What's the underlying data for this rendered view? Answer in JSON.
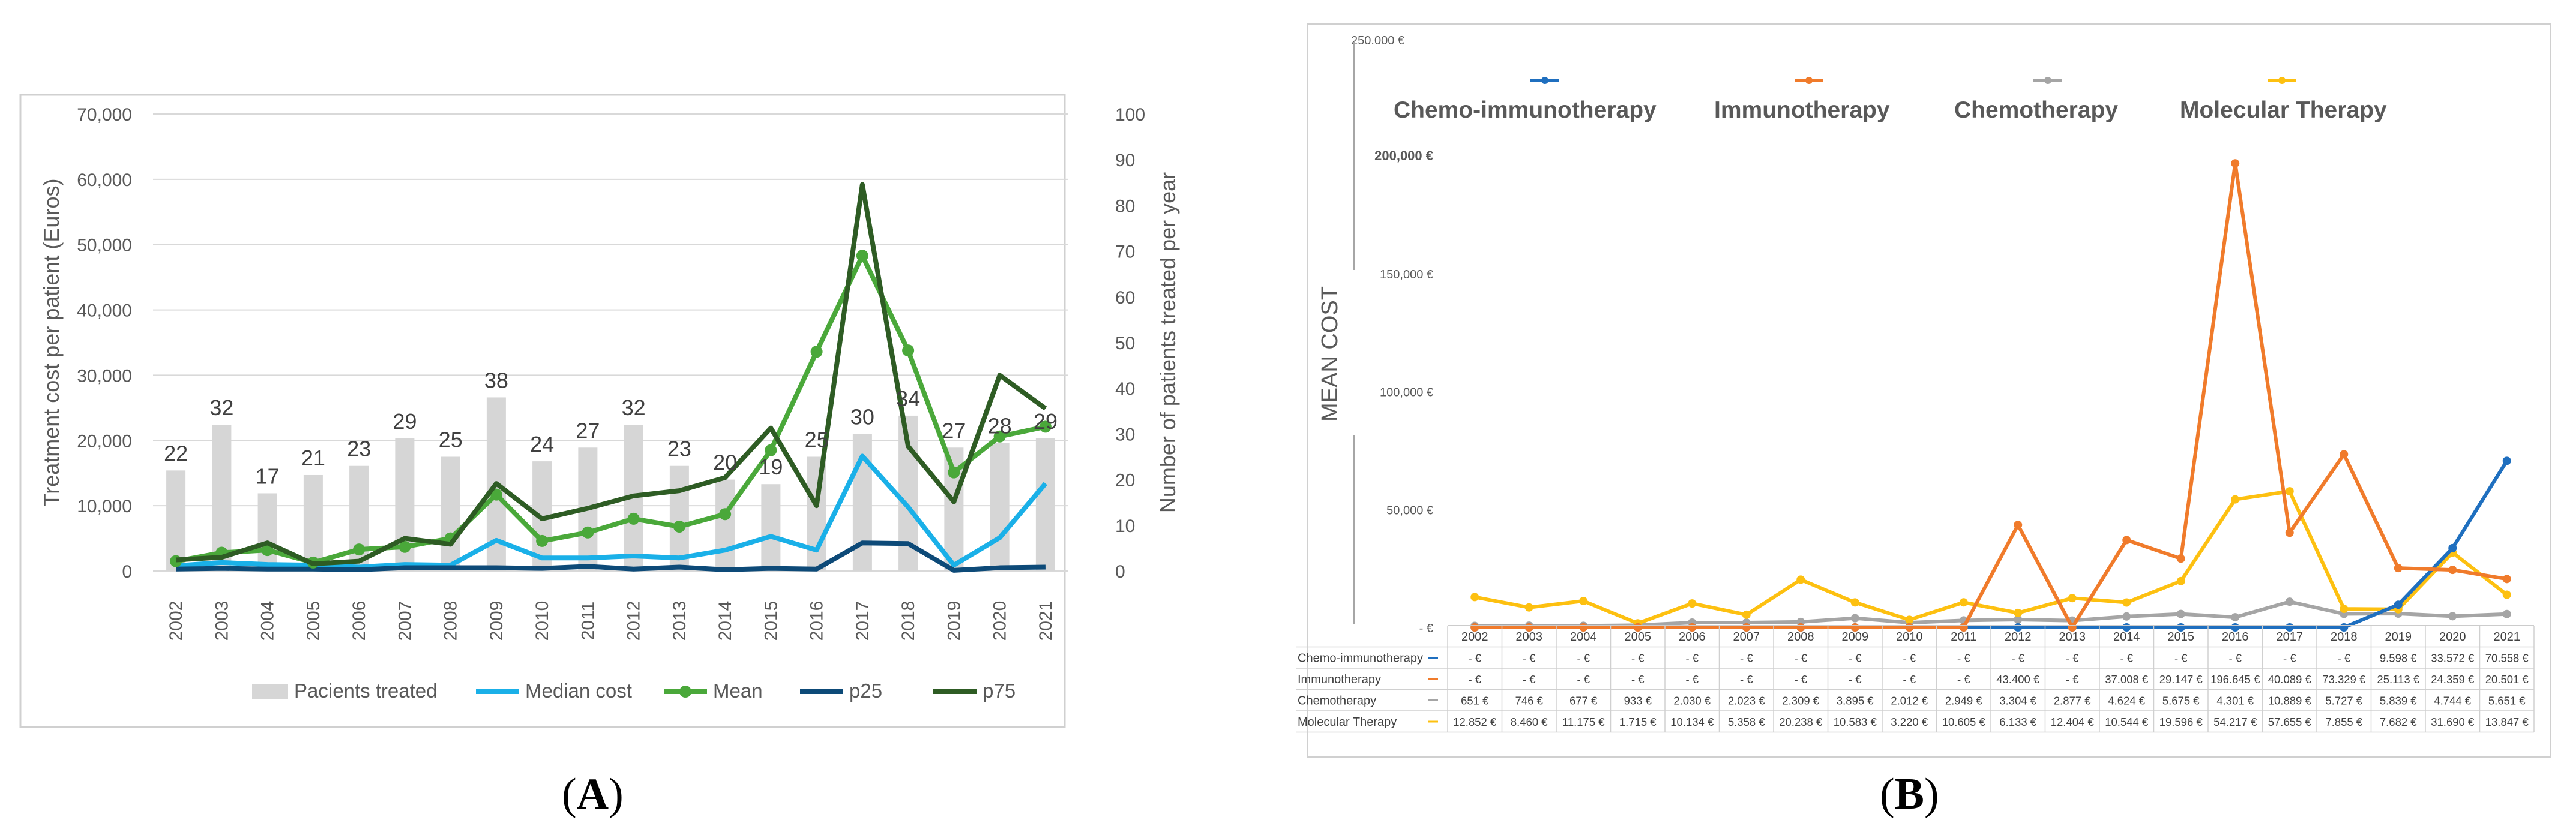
{
  "panel_labels": {
    "a_open": "(",
    "a_letter": "A",
    "a_close": ")",
    "b_open": "(",
    "b_letter": "B",
    "b_close": ")"
  },
  "chart_data": [
    {
      "type": "bar+line",
      "panel": "A",
      "title": "",
      "xlabel": "",
      "ylabel": "Treatment cost per patient (Euros)",
      "y2label": "Number of patients treated per year",
      "ylim": [
        0,
        70000
      ],
      "y2lim": [
        0,
        100
      ],
      "ytick_labels": [
        "0",
        "10,000",
        "20,000",
        "30,000",
        "40,000",
        "50,000",
        "60,000",
        "70,000"
      ],
      "y2tick_labels": [
        "0",
        "10",
        "20",
        "30",
        "40",
        "50",
        "60",
        "70",
        "80",
        "90",
        "100"
      ],
      "categories": [
        "2002",
        "2003",
        "2004",
        "2005",
        "2006",
        "2007",
        "2008",
        "2009",
        "2010",
        "2011",
        "2012",
        "2013",
        "2014",
        "2015",
        "2016",
        "2017",
        "2018",
        "2019",
        "2020",
        "2021"
      ],
      "bars": {
        "name": "Pacients treated",
        "values": [
          22,
          32,
          17,
          21,
          23,
          29,
          25,
          38,
          24,
          27,
          32,
          23,
          20,
          19,
          25,
          30,
          34,
          27,
          28,
          29
        ],
        "color": "#d6d6d6"
      },
      "series": [
        {
          "name": "Median cost",
          "color": "#1ab0e8",
          "values": [
            800,
            1300,
            1000,
            900,
            600,
            1000,
            900,
            4700,
            2000,
            2000,
            2300,
            2000,
            3200,
            5300,
            3200,
            17600,
            9800,
            900,
            5100,
            13400
          ]
        },
        {
          "name": "Mean",
          "color": "#4aa83a",
          "values": [
            1500,
            2800,
            3200,
            1300,
            3300,
            3700,
            5000,
            11700,
            4600,
            5900,
            8000,
            6800,
            8700,
            18500,
            33600,
            48300,
            33800,
            15100,
            20600,
            22100
          ]
        },
        {
          "name": "p25",
          "color": "#0d4a78",
          "values": [
            300,
            400,
            300,
            300,
            200,
            500,
            500,
            500,
            400,
            700,
            300,
            600,
            200,
            400,
            300,
            4300,
            4200,
            100,
            500,
            600
          ]
        },
        {
          "name": "p75",
          "color": "#2e5c24",
          "values": [
            1700,
            2100,
            4300,
            1100,
            1500,
            5000,
            4100,
            13400,
            8000,
            9600,
            11500,
            12300,
            14300,
            21900,
            10000,
            59200,
            19100,
            10600,
            30000,
            24900
          ]
        }
      ]
    },
    {
      "type": "line+table",
      "panel": "B",
      "ylabel": "MEAN COST",
      "ylim": [
        0,
        250000
      ],
      "ytick_labels": [
        "- €",
        "50,000 €",
        "100,000 €",
        "150,000 €",
        "200,000 €",
        "250.000 €"
      ],
      "categories": [
        "2002",
        "2003",
        "2004",
        "2005",
        "2006",
        "2007",
        "2008",
        "2009",
        "2010",
        "2011",
        "2012",
        "2013",
        "2014",
        "2015",
        "2016",
        "2017",
        "2018",
        "2019",
        "2020",
        "2021"
      ],
      "series": [
        {
          "name": "Chemo-immunotherapy",
          "color": "#1f6fbf",
          "values": [
            0,
            0,
            0,
            0,
            0,
            0,
            0,
            0,
            0,
            0,
            0,
            0,
            0,
            0,
            0,
            0,
            0,
            9598,
            33572,
            70558
          ]
        },
        {
          "name": "Immunotherapy",
          "color": "#f07b2b",
          "values": [
            0,
            0,
            0,
            0,
            0,
            0,
            0,
            0,
            0,
            0,
            43400,
            0,
            37008,
            29147,
            196645,
            40089,
            73329,
            25113,
            24359,
            20501
          ]
        },
        {
          "name": "Chemotherapy",
          "color": "#a5a5a5",
          "values": [
            651,
            746,
            677,
            933,
            2030,
            2023,
            2309,
            3895,
            2012,
            2949,
            3304,
            2877,
            4624,
            5675,
            4301,
            10889,
            5727,
            5839,
            4744,
            5651
          ]
        },
        {
          "name": "Molecular Therapy",
          "color": "#fdc010",
          "values": [
            12852,
            8460,
            11175,
            1715,
            10134,
            5358,
            20238,
            10583,
            3220,
            10605,
            6133,
            12404,
            10544,
            19596,
            54217,
            57655,
            7855,
            7682,
            31690,
            13847
          ]
        }
      ],
      "table": {
        "row_labels": [
          "Chemo-immunotherapy",
          "Immunotherapy",
          "Chemotherapy",
          "Molecular Therapy"
        ],
        "rows": [
          [
            "- €",
            "- €",
            "- €",
            "- €",
            "- €",
            "- €",
            "- €",
            "- €",
            "- €",
            "- €",
            "- €",
            "- €",
            "- €",
            "- €",
            "- €",
            "- €",
            "- €",
            "9.598 €",
            "33.572 €",
            "70.558 €"
          ],
          [
            "- €",
            "- €",
            "- €",
            "- €",
            "- €",
            "- €",
            "- €",
            "- €",
            "- €",
            "- €",
            "43.400 €",
            "- €",
            "37.008 €",
            "29.147 €",
            "196.645 €",
            "40.089 €",
            "73.329 €",
            "25.113 €",
            "24.359 €",
            "20.501 €"
          ],
          [
            "651 €",
            "746 €",
            "677 €",
            "933 €",
            "2.030 €",
            "2.023 €",
            "2.309 €",
            "3.895 €",
            "2.012 €",
            "2.949 €",
            "3.304 €",
            "2.877 €",
            "4.624 €",
            "5.675 €",
            "4.301 €",
            "10.889 €",
            "5.727 €",
            "5.839 €",
            "4.744 €",
            "5.651 €"
          ],
          [
            "12.852 €",
            "8.460 €",
            "11.175 €",
            "1.715 €",
            "10.134 €",
            "5.358 €",
            "20.238 €",
            "10.583 €",
            "3.220 €",
            "10.605 €",
            "6.133 €",
            "12.404 €",
            "10.544 €",
            "19.596 €",
            "54.217 €",
            "57.655 €",
            "7.855 €",
            "7.682 €",
            "31.690 €",
            "13.847 €"
          ]
        ]
      }
    }
  ]
}
